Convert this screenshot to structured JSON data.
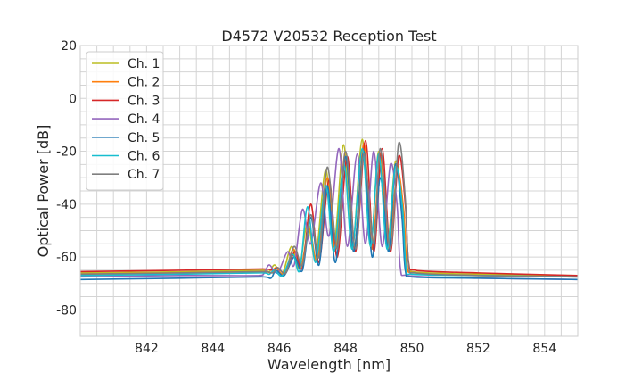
{
  "chart_data": {
    "type": "line",
    "title": "D4572 V20532 Reception Test",
    "xlabel": "Wavelength [nm]",
    "ylabel": "Optical Power [dB]",
    "xlim": [
      840,
      855
    ],
    "ylim": [
      -90,
      20
    ],
    "xticks": [
      842,
      844,
      846,
      848,
      850,
      852,
      854
    ],
    "yticks": [
      -80,
      -60,
      -40,
      -20,
      0,
      20
    ],
    "grid": true,
    "minor_grid": true,
    "legend_position": "top-left",
    "series": [
      {
        "name": "Ch. 1",
        "color": "#bcbd22",
        "points": [
          [
            840,
            -66
          ],
          [
            843,
            -65.6
          ],
          [
            845.5,
            -65
          ],
          [
            845.7,
            -65.5
          ],
          [
            845.86,
            -63
          ],
          [
            846.1,
            -66
          ],
          [
            846.37,
            -56
          ],
          [
            846.6,
            -64
          ],
          [
            846.85,
            -47
          ],
          [
            847.1,
            -60
          ],
          [
            847.4,
            -27
          ],
          [
            847.65,
            -56
          ],
          [
            847.94,
            -17.5
          ],
          [
            848.2,
            -57
          ],
          [
            848.5,
            -15.5
          ],
          [
            848.75,
            -56
          ],
          [
            849.0,
            -20
          ],
          [
            849.25,
            -56
          ],
          [
            849.5,
            -24
          ],
          [
            849.7,
            -40
          ],
          [
            849.8,
            -62
          ],
          [
            850,
            -65.5
          ],
          [
            852,
            -66.5
          ],
          [
            855,
            -67
          ]
        ]
      },
      {
        "name": "Ch. 2",
        "color": "#ff7f0e",
        "points": [
          [
            840,
            -66.5
          ],
          [
            843,
            -66
          ],
          [
            845.5,
            -65.5
          ],
          [
            845.75,
            -66
          ],
          [
            845.9,
            -64
          ],
          [
            846.15,
            -66.5
          ],
          [
            846.42,
            -57
          ],
          [
            846.65,
            -64
          ],
          [
            846.9,
            -49
          ],
          [
            847.15,
            -61
          ],
          [
            847.45,
            -30
          ],
          [
            847.7,
            -57
          ],
          [
            848.0,
            -20
          ],
          [
            848.25,
            -58
          ],
          [
            848.55,
            -17
          ],
          [
            848.8,
            -57
          ],
          [
            849.05,
            -22
          ],
          [
            849.3,
            -57
          ],
          [
            849.55,
            -28
          ],
          [
            849.75,
            -42
          ],
          [
            849.85,
            -63
          ],
          [
            850.05,
            -66
          ],
          [
            852,
            -67
          ],
          [
            855,
            -67.5
          ]
        ]
      },
      {
        "name": "Ch. 3",
        "color": "#d62728",
        "points": [
          [
            840,
            -65.5
          ],
          [
            843,
            -65
          ],
          [
            845.5,
            -64.5
          ],
          [
            845.8,
            -65
          ],
          [
            845.95,
            -64
          ],
          [
            846.2,
            -66
          ],
          [
            846.47,
            -58
          ],
          [
            846.7,
            -64
          ],
          [
            846.95,
            -40
          ],
          [
            847.2,
            -62
          ],
          [
            847.5,
            -31
          ],
          [
            847.75,
            -60
          ],
          [
            848.05,
            -22
          ],
          [
            848.3,
            -58
          ],
          [
            848.6,
            -16
          ],
          [
            848.85,
            -58
          ],
          [
            849.1,
            -19
          ],
          [
            849.35,
            -58
          ],
          [
            849.6,
            -22
          ],
          [
            849.8,
            -40
          ],
          [
            849.9,
            -62
          ],
          [
            850.1,
            -65
          ],
          [
            852,
            -66
          ],
          [
            855,
            -67
          ]
        ]
      },
      {
        "name": "Ch. 4",
        "color": "#9467bd",
        "points": [
          [
            840,
            -67.5
          ],
          [
            843,
            -67
          ],
          [
            845.4,
            -67
          ],
          [
            845.55,
            -66
          ],
          [
            845.7,
            -63
          ],
          [
            845.95,
            -66
          ],
          [
            846.25,
            -58
          ],
          [
            846.45,
            -63
          ],
          [
            846.7,
            -42
          ],
          [
            846.95,
            -55
          ],
          [
            847.25,
            -32
          ],
          [
            847.5,
            -52
          ],
          [
            847.8,
            -19
          ],
          [
            848.05,
            -56
          ],
          [
            848.35,
            -21
          ],
          [
            848.6,
            -55
          ],
          [
            848.85,
            -20
          ],
          [
            849.1,
            -56
          ],
          [
            849.35,
            -25
          ],
          [
            849.55,
            -40
          ],
          [
            849.65,
            -64
          ],
          [
            849.85,
            -67
          ],
          [
            852,
            -68
          ],
          [
            855,
            -68.5
          ]
        ]
      },
      {
        "name": "Ch. 5",
        "color": "#1f77b4",
        "points": [
          [
            840,
            -68.5
          ],
          [
            843,
            -68
          ],
          [
            845.5,
            -67.5
          ],
          [
            845.75,
            -68
          ],
          [
            845.9,
            -65
          ],
          [
            846.15,
            -67
          ],
          [
            846.45,
            -60
          ],
          [
            846.7,
            -65
          ],
          [
            846.95,
            -45
          ],
          [
            847.2,
            -63
          ],
          [
            847.45,
            -33
          ],
          [
            847.7,
            -62
          ],
          [
            848.0,
            -22
          ],
          [
            848.25,
            -58
          ],
          [
            848.55,
            -20
          ],
          [
            848.8,
            -60
          ],
          [
            849.05,
            -30
          ],
          [
            849.3,
            -58
          ],
          [
            849.5,
            -25
          ],
          [
            849.7,
            -45
          ],
          [
            849.8,
            -65
          ],
          [
            850,
            -67.5
          ],
          [
            852,
            -68
          ],
          [
            855,
            -68.5
          ]
        ]
      },
      {
        "name": "Ch. 6",
        "color": "#17becf",
        "points": [
          [
            840,
            -67
          ],
          [
            843,
            -66.5
          ],
          [
            845.5,
            -66
          ],
          [
            845.7,
            -66.5
          ],
          [
            845.85,
            -65
          ],
          [
            846.1,
            -67
          ],
          [
            846.4,
            -59
          ],
          [
            846.62,
            -65
          ],
          [
            846.85,
            -41
          ],
          [
            847.1,
            -62
          ],
          [
            847.4,
            -33
          ],
          [
            847.65,
            -58
          ],
          [
            847.95,
            -25
          ],
          [
            848.2,
            -57
          ],
          [
            848.5,
            -19
          ],
          [
            848.75,
            -56
          ],
          [
            849.0,
            -21
          ],
          [
            849.25,
            -57
          ],
          [
            849.5,
            -26
          ],
          [
            849.72,
            -42
          ],
          [
            849.82,
            -64
          ],
          [
            850,
            -66.5
          ],
          [
            852,
            -67
          ],
          [
            855,
            -67.5
          ]
        ]
      },
      {
        "name": "Ch. 7",
        "color": "#7f7f7f",
        "points": [
          [
            840,
            -66.5
          ],
          [
            843,
            -66
          ],
          [
            845.5,
            -65.5
          ],
          [
            845.8,
            -66
          ],
          [
            845.95,
            -64
          ],
          [
            846.2,
            -66
          ],
          [
            846.45,
            -56
          ],
          [
            846.7,
            -63
          ],
          [
            846.95,
            -44
          ],
          [
            847.2,
            -60
          ],
          [
            847.45,
            -26
          ],
          [
            847.75,
            -57
          ],
          [
            848.0,
            -20
          ],
          [
            848.3,
            -57
          ],
          [
            848.55,
            -21
          ],
          [
            848.85,
            -55
          ],
          [
            849.05,
            -19
          ],
          [
            849.35,
            -57
          ],
          [
            849.6,
            -17
          ],
          [
            849.8,
            -38
          ],
          [
            849.9,
            -63
          ],
          [
            850.1,
            -66
          ],
          [
            852,
            -67
          ],
          [
            855,
            -67.5
          ]
        ]
      }
    ]
  }
}
